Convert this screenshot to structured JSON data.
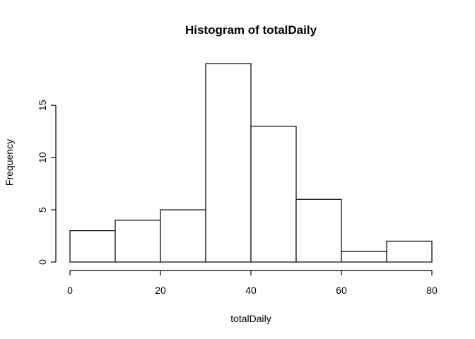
{
  "chart_data": {
    "type": "bar",
    "title": "Histogram of totalDaily",
    "xlabel": "totalDaily",
    "ylabel": "Frequency",
    "bins": [
      {
        "from": 0,
        "to": 10,
        "count": 3
      },
      {
        "from": 10,
        "to": 20,
        "count": 4
      },
      {
        "from": 20,
        "to": 30,
        "count": 5
      },
      {
        "from": 30,
        "to": 40,
        "count": 19
      },
      {
        "from": 40,
        "to": 50,
        "count": 13
      },
      {
        "from": 50,
        "to": 60,
        "count": 6
      },
      {
        "from": 60,
        "to": 70,
        "count": 1
      },
      {
        "from": 70,
        "to": 80,
        "count": 2
      }
    ],
    "xlim": [
      0,
      80
    ],
    "ylim": [
      0,
      19
    ],
    "x_ticks": [
      0,
      20,
      40,
      60,
      80
    ],
    "y_ticks": [
      0,
      5,
      10,
      15
    ],
    "grid": false,
    "legend": "none"
  }
}
